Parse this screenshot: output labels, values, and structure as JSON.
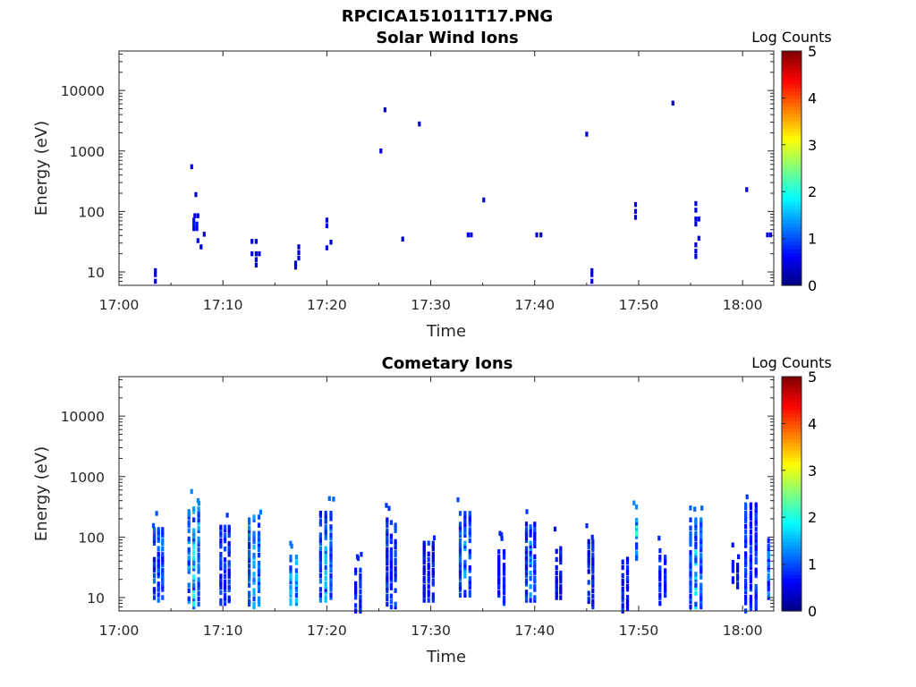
{
  "figure": {
    "title": "RPCICA151011T17.PNG"
  },
  "chart_data": [
    {
      "type": "heatmap",
      "title": "Solar Wind Ions",
      "xlabel": "Time",
      "ylabel": "Energy (eV)",
      "x_ticks": [
        "17:00",
        "17:10",
        "17:20",
        "17:30",
        "17:40",
        "17:50",
        "18:00"
      ],
      "y_ticks": [
        "10",
        "100",
        "1000",
        "10000"
      ],
      "y_scale": "log",
      "xlim": [
        "17:00",
        "18:03"
      ],
      "ylim": [
        6,
        45000
      ],
      "colorbar": {
        "label": "Log Counts",
        "range": [
          0,
          5
        ],
        "ticks": [
          "0",
          "1",
          "2",
          "3",
          "4",
          "5"
        ],
        "colormap": "jet"
      },
      "points": [
        {
          "t": 3.5,
          "e": 7,
          "c": 0.4
        },
        {
          "t": 3.5,
          "e": 9,
          "c": 0.4
        },
        {
          "t": 3.5,
          "e": 10.5,
          "c": 0.4
        },
        {
          "t": 7.0,
          "e": 550,
          "c": 0.6
        },
        {
          "t": 7.4,
          "e": 190,
          "c": 0.4
        },
        {
          "t": 7.3,
          "e": 85,
          "c": 0.5
        },
        {
          "t": 7.6,
          "e": 85,
          "c": 0.5
        },
        {
          "t": 7.2,
          "e": 72,
          "c": 0.6
        },
        {
          "t": 7.2,
          "e": 62,
          "c": 0.7
        },
        {
          "t": 7.5,
          "e": 62,
          "c": 0.7
        },
        {
          "t": 7.2,
          "e": 52,
          "c": 0.6
        },
        {
          "t": 7.5,
          "e": 52,
          "c": 0.6
        },
        {
          "t": 8.2,
          "e": 42,
          "c": 0.4
        },
        {
          "t": 7.6,
          "e": 33,
          "c": 0.4
        },
        {
          "t": 7.9,
          "e": 26,
          "c": 0.4
        },
        {
          "t": 12.8,
          "e": 32,
          "c": 0.4
        },
        {
          "t": 13.2,
          "e": 32,
          "c": 0.4
        },
        {
          "t": 12.8,
          "e": 20,
          "c": 0.4
        },
        {
          "t": 13.2,
          "e": 20,
          "c": 0.5
        },
        {
          "t": 13.5,
          "e": 20,
          "c": 0.5
        },
        {
          "t": 13.2,
          "e": 16,
          "c": 0.4
        },
        {
          "t": 13.2,
          "e": 13,
          "c": 0.4
        },
        {
          "t": 17.3,
          "e": 26,
          "c": 0.4
        },
        {
          "t": 17.3,
          "e": 21,
          "c": 0.4
        },
        {
          "t": 17.3,
          "e": 17,
          "c": 0.4
        },
        {
          "t": 17.0,
          "e": 14,
          "c": 0.4
        },
        {
          "t": 17.0,
          "e": 12,
          "c": 0.4
        },
        {
          "t": 20.0,
          "e": 72,
          "c": 0.4
        },
        {
          "t": 20.0,
          "e": 58,
          "c": 0.4
        },
        {
          "t": 20.4,
          "e": 31,
          "c": 0.4
        },
        {
          "t": 20.0,
          "e": 25,
          "c": 0.4
        },
        {
          "t": 25.6,
          "e": 4800,
          "c": 0.4
        },
        {
          "t": 25.2,
          "e": 1000,
          "c": 0.4
        },
        {
          "t": 28.9,
          "e": 2800,
          "c": 0.4
        },
        {
          "t": 27.3,
          "e": 35,
          "c": 0.4
        },
        {
          "t": 35.1,
          "e": 155,
          "c": 0.4
        },
        {
          "t": 33.6,
          "e": 41,
          "c": 0.5
        },
        {
          "t": 33.9,
          "e": 41,
          "c": 0.5
        },
        {
          "t": 40.2,
          "e": 41,
          "c": 0.4
        },
        {
          "t": 40.6,
          "e": 41,
          "c": 0.4
        },
        {
          "t": 45.0,
          "e": 1900,
          "c": 0.4
        },
        {
          "t": 45.5,
          "e": 7,
          "c": 0.4
        },
        {
          "t": 45.5,
          "e": 9,
          "c": 0.4
        },
        {
          "t": 45.5,
          "e": 10.5,
          "c": 0.4
        },
        {
          "t": 53.3,
          "e": 6200,
          "c": 0.4
        },
        {
          "t": 49.7,
          "e": 130,
          "c": 0.4
        },
        {
          "t": 49.7,
          "e": 100,
          "c": 0.4
        },
        {
          "t": 49.7,
          "e": 80,
          "c": 0.4
        },
        {
          "t": 55.5,
          "e": 135,
          "c": 0.4
        },
        {
          "t": 55.5,
          "e": 105,
          "c": 0.4
        },
        {
          "t": 55.5,
          "e": 75,
          "c": 0.5
        },
        {
          "t": 55.8,
          "e": 75,
          "c": 0.5
        },
        {
          "t": 55.5,
          "e": 62,
          "c": 0.4
        },
        {
          "t": 55.8,
          "e": 36,
          "c": 0.4
        },
        {
          "t": 55.5,
          "e": 28,
          "c": 0.4
        },
        {
          "t": 55.5,
          "e": 22,
          "c": 0.4
        },
        {
          "t": 55.5,
          "e": 18,
          "c": 0.4
        },
        {
          "t": 60.4,
          "e": 230,
          "c": 0.4
        },
        {
          "t": 62.4,
          "e": 41,
          "c": 0.5
        },
        {
          "t": 62.7,
          "e": 41,
          "c": 0.5
        }
      ]
    },
    {
      "type": "heatmap",
      "title": "Cometary Ions",
      "xlabel": "Time",
      "ylabel": "Energy (eV)",
      "x_ticks": [
        "17:00",
        "17:10",
        "17:20",
        "17:30",
        "17:40",
        "17:50",
        "18:00"
      ],
      "y_ticks": [
        "10",
        "100",
        "1000",
        "10000"
      ],
      "y_scale": "log",
      "xlim": [
        "17:00",
        "18:03"
      ],
      "ylim": [
        6,
        45000
      ],
      "colorbar": {
        "label": "Log Counts",
        "range": [
          0,
          5
        ],
        "ticks": [
          "0",
          "1",
          "2",
          "3",
          "4",
          "5"
        ],
        "colormap": "jet"
      },
      "columns": [
        {
          "t": 3.8,
          "lo": 9,
          "hi": 140,
          "c": 1.0,
          "w": 1.2
        },
        {
          "t": 7.2,
          "lo": 7,
          "hi": 300,
          "c": 1.3,
          "w": 1.4,
          "hot": 1.9
        },
        {
          "t": 10.2,
          "lo": 8,
          "hi": 160,
          "c": 0.9,
          "w": 1.2
        },
        {
          "t": 13.0,
          "lo": 7,
          "hi": 220,
          "c": 1.2,
          "w": 1.4,
          "hot": 1.5
        },
        {
          "t": 16.8,
          "lo": 8,
          "hi": 50,
          "c": 1.2,
          "w": 1.1,
          "hot": 1.6
        },
        {
          "t": 19.9,
          "lo": 9,
          "hi": 260,
          "c": 1.1,
          "w": 1.5,
          "hot": 1.6
        },
        {
          "t": 23.0,
          "lo": 6,
          "hi": 30,
          "c": 0.8,
          "w": 0.9
        },
        {
          "t": 26.2,
          "lo": 7,
          "hi": 200,
          "c": 0.9,
          "w": 1.2
        },
        {
          "t": 29.8,
          "lo": 9,
          "hi": 80,
          "c": 0.8,
          "w": 1.3
        },
        {
          "t": 33.3,
          "lo": 11,
          "hi": 260,
          "c": 1.0,
          "w": 1.4,
          "hot": 1.5
        },
        {
          "t": 36.8,
          "lo": 8,
          "hi": 60,
          "c": 0.8,
          "w": 1.0
        },
        {
          "t": 39.6,
          "lo": 9,
          "hi": 180,
          "c": 0.9,
          "w": 1.2,
          "hot": 1.4
        },
        {
          "t": 42.3,
          "lo": 9,
          "hi": 70,
          "c": 0.7,
          "w": 0.8
        },
        {
          "t": 45.4,
          "lo": 7,
          "hi": 90,
          "c": 0.8,
          "w": 0.8
        },
        {
          "t": 48.7,
          "lo": 6,
          "hi": 45,
          "c": 0.8,
          "w": 0.9
        },
        {
          "t": 49.8,
          "lo": 40,
          "hi": 190,
          "c": 1.3,
          "w": 0.6,
          "hot": 2.2
        },
        {
          "t": 52.3,
          "lo": 8,
          "hi": 50,
          "c": 0.8,
          "w": 1.0
        },
        {
          "t": 55.5,
          "lo": 7,
          "hi": 200,
          "c": 1.1,
          "w": 1.5,
          "hot": 1.8
        },
        {
          "t": 59.3,
          "lo": 15,
          "hi": 40,
          "c": 0.7,
          "w": 0.9
        },
        {
          "t": 60.8,
          "lo": 6,
          "hi": 380,
          "c": 0.9,
          "w": 1.5
        },
        {
          "t": 62.5,
          "lo": 10,
          "hi": 90,
          "c": 1.0,
          "w": 0.5,
          "hot": 1.3
        }
      ]
    }
  ]
}
